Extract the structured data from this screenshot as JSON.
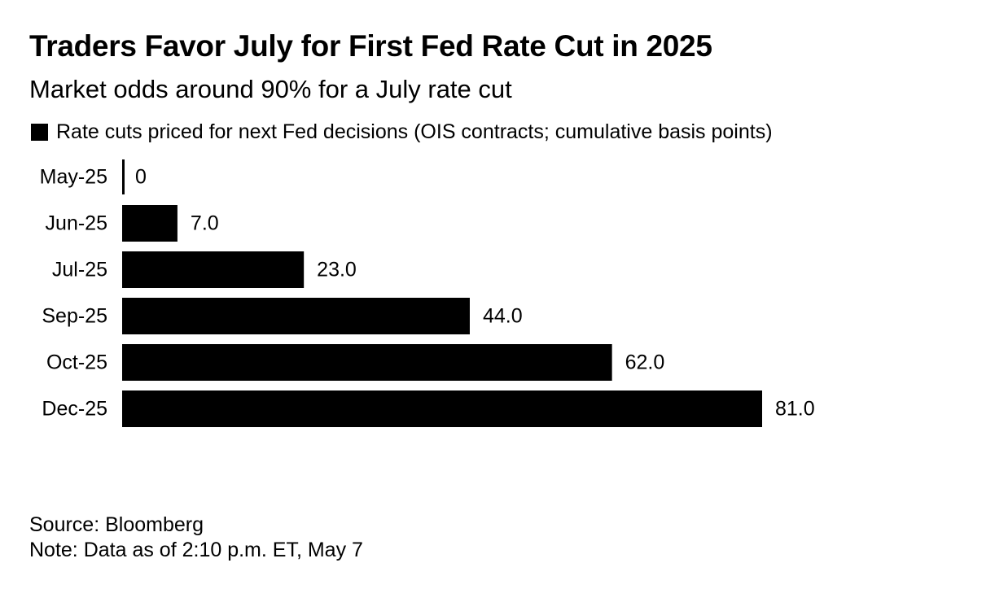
{
  "header": {
    "title": "Traders Favor July for First Fed Rate Cut in 2025",
    "subtitle": "Market odds around 90% for a July rate cut"
  },
  "legend": {
    "label": "Rate cuts priced for next Fed decisions (OIS contracts; cumulative basis points)"
  },
  "footer": {
    "source": "Source: Bloomberg",
    "note": "Note: Data as of 2:10 p.m. ET, May 7"
  },
  "colors": {
    "bar": "#000000",
    "text": "#000000",
    "background": "#ffffff"
  },
  "chart_data": {
    "type": "bar",
    "orientation": "horizontal",
    "categories": [
      "May-25",
      "Jun-25",
      "Jul-25",
      "Sep-25",
      "Oct-25",
      "Dec-25"
    ],
    "values": [
      0,
      7.0,
      23.0,
      44.0,
      62.0,
      81.0
    ],
    "value_labels": [
      "0",
      "7.0",
      "23.0",
      "44.0",
      "62.0",
      "81.0"
    ],
    "series": [
      {
        "name": "Rate cuts priced for next Fed decisions (OIS contracts; cumulative basis points)",
        "values": [
          0,
          7.0,
          23.0,
          44.0,
          62.0,
          81.0
        ]
      }
    ],
    "title": "Traders Favor July for First Fed Rate Cut in 2025",
    "subtitle": "Market odds around 90% for a July rate cut",
    "xlabel": "",
    "ylabel": "",
    "xlim": [
      0,
      81.0
    ],
    "grid": false,
    "legend_position": "top-left"
  }
}
